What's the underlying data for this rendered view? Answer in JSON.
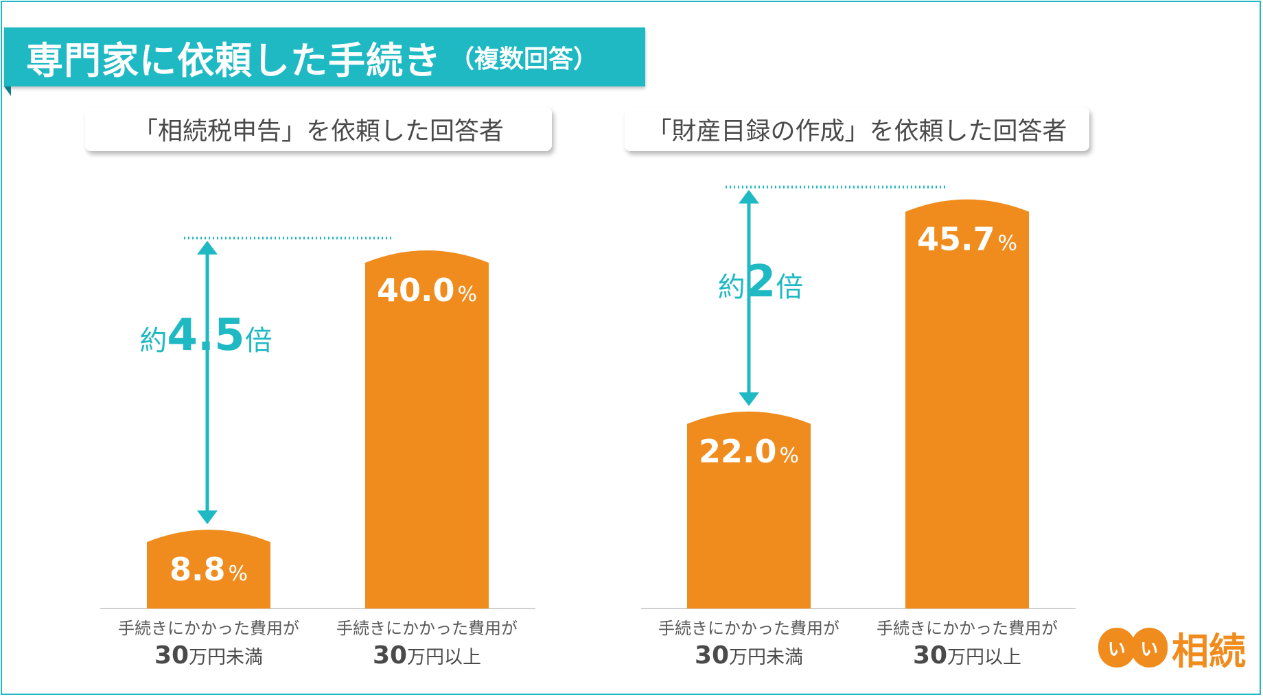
{
  "header": {
    "title": "専門家に依頼した手続き",
    "subtitle": "（複数回答）"
  },
  "logo": {
    "circles": [
      "い",
      "い"
    ],
    "text": "相続"
  },
  "colors": {
    "accent": "#1fb9c4",
    "bar": "#f08c1e",
    "baseline": "#d0d0d0",
    "tab_text": "#4a4a4a",
    "category_text": "#595959"
  },
  "chart_data": [
    {
      "type": "bar",
      "title": "「相続税申告」を依頼した回答者",
      "categories": [
        {
          "line1": "手続きにかかった費用が",
          "number": "30",
          "suffix": "万円未満"
        },
        {
          "line1": "手続きにかかった費用が",
          "number": "30",
          "suffix": "万円以上"
        }
      ],
      "values": [
        8.8,
        40.0
      ],
      "value_labels": [
        "8.8",
        "40.0"
      ],
      "unit": "%",
      "comparison": {
        "prefix": "約",
        "value": "4.5",
        "suffix": "倍"
      }
    },
    {
      "type": "bar",
      "title": "「財産目録の作成」を依頼した回答者",
      "categories": [
        {
          "line1": "手続きにかかった費用が",
          "number": "30",
          "suffix": "万円未満"
        },
        {
          "line1": "手続きにかかった費用が",
          "number": "30",
          "suffix": "万円以上"
        }
      ],
      "values": [
        22.0,
        45.7
      ],
      "value_labels": [
        "22.0",
        "45.7"
      ],
      "unit": "%",
      "comparison": {
        "prefix": "約",
        "value": "2",
        "suffix": "倍"
      }
    }
  ]
}
